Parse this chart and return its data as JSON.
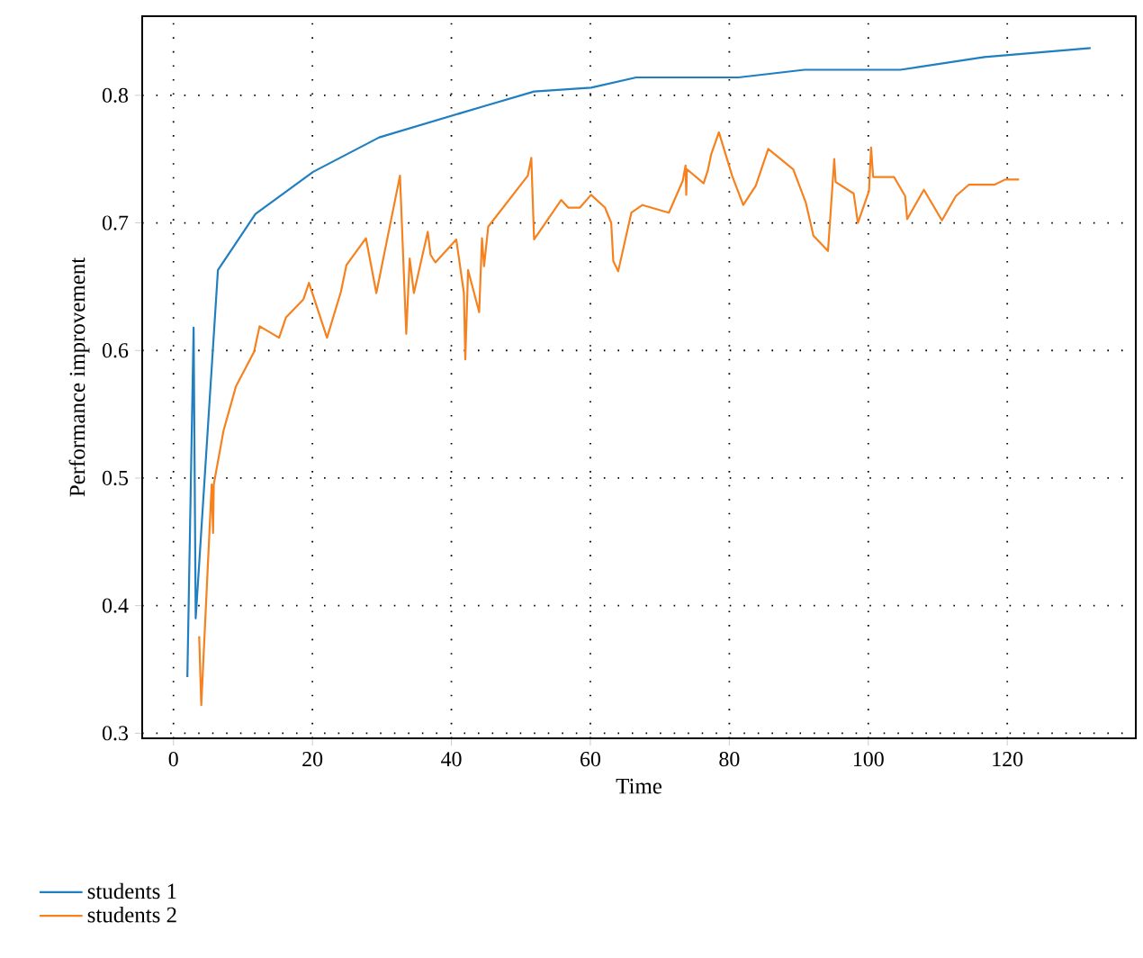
{
  "chart_data": {
    "type": "line",
    "xlabel": "Time",
    "ylabel": "Performance improvement",
    "xlim": [
      -4.5,
      138.5
    ],
    "ylim": [
      0.296,
      0.862
    ],
    "xticks": [
      0,
      20,
      40,
      60,
      80,
      100,
      120
    ],
    "yticks": [
      0.3,
      0.4,
      0.5,
      0.6,
      0.7,
      0.8
    ],
    "grid": true,
    "legend": "bottom",
    "marker": "none",
    "line_style": "solid",
    "series": [
      {
        "name": "students 1",
        "color": "#1f7fc0",
        "x": [
          2.0,
          2.9,
          3.2,
          6.4,
          11.8,
          20.1,
          29.6,
          45.0,
          51.9,
          60.1,
          66.6,
          81.3,
          90.8,
          104.6,
          116.7,
          132.0
        ],
        "values": [
          0.344,
          0.618,
          0.39,
          0.663,
          0.707,
          0.74,
          0.767,
          0.792,
          0.803,
          0.806,
          0.814,
          0.814,
          0.82,
          0.82,
          0.83,
          0.837
        ]
      },
      {
        "name": "students 2",
        "color": "#f5811f",
        "x": [
          3.7,
          4.0,
          5.5,
          5.7,
          5.8,
          7.2,
          9.0,
          11.6,
          12.4,
          15.2,
          16.2,
          18.7,
          19.5,
          22.1,
          24.1,
          24.9,
          27.7,
          29.2,
          32.6,
          33.5,
          34.0,
          34.6,
          36.6,
          37.0,
          37.7,
          40.7,
          41.8,
          42.0,
          42.4,
          44.0,
          44.4,
          44.7,
          45.3,
          51.0,
          51.5,
          51.9,
          55.8,
          56.8,
          58.5,
          60.1,
          62.1,
          63.0,
          63.3,
          64.0,
          65.9,
          67.5,
          71.3,
          73.3,
          73.7,
          73.8,
          73.9,
          76.3,
          76.9,
          77.4,
          78.5,
          80.4,
          82.0,
          83.8,
          85.6,
          89.2,
          91.0,
          92.1,
          94.2,
          95.1,
          95.3,
          97.9,
          98.5,
          100.1,
          100.4,
          100.7,
          103.7,
          105.3,
          105.6,
          108.0,
          110.6,
          112.6,
          114.5,
          118.2,
          119.7,
          121.7
        ],
        "values": [
          0.376,
          0.322,
          0.495,
          0.457,
          0.495,
          0.537,
          0.572,
          0.599,
          0.619,
          0.61,
          0.626,
          0.64,
          0.653,
          0.61,
          0.646,
          0.667,
          0.688,
          0.645,
          0.737,
          0.613,
          0.672,
          0.645,
          0.693,
          0.675,
          0.669,
          0.687,
          0.645,
          0.593,
          0.663,
          0.63,
          0.688,
          0.666,
          0.697,
          0.737,
          0.751,
          0.687,
          0.718,
          0.712,
          0.712,
          0.722,
          0.712,
          0.7,
          0.67,
          0.662,
          0.708,
          0.714,
          0.708,
          0.733,
          0.745,
          0.722,
          0.742,
          0.731,
          0.741,
          0.754,
          0.771,
          0.737,
          0.714,
          0.729,
          0.758,
          0.742,
          0.716,
          0.69,
          0.678,
          0.75,
          0.732,
          0.723,
          0.7,
          0.725,
          0.759,
          0.736,
          0.736,
          0.721,
          0.703,
          0.726,
          0.702,
          0.721,
          0.73,
          0.73,
          0.734,
          0.734
        ]
      }
    ]
  }
}
